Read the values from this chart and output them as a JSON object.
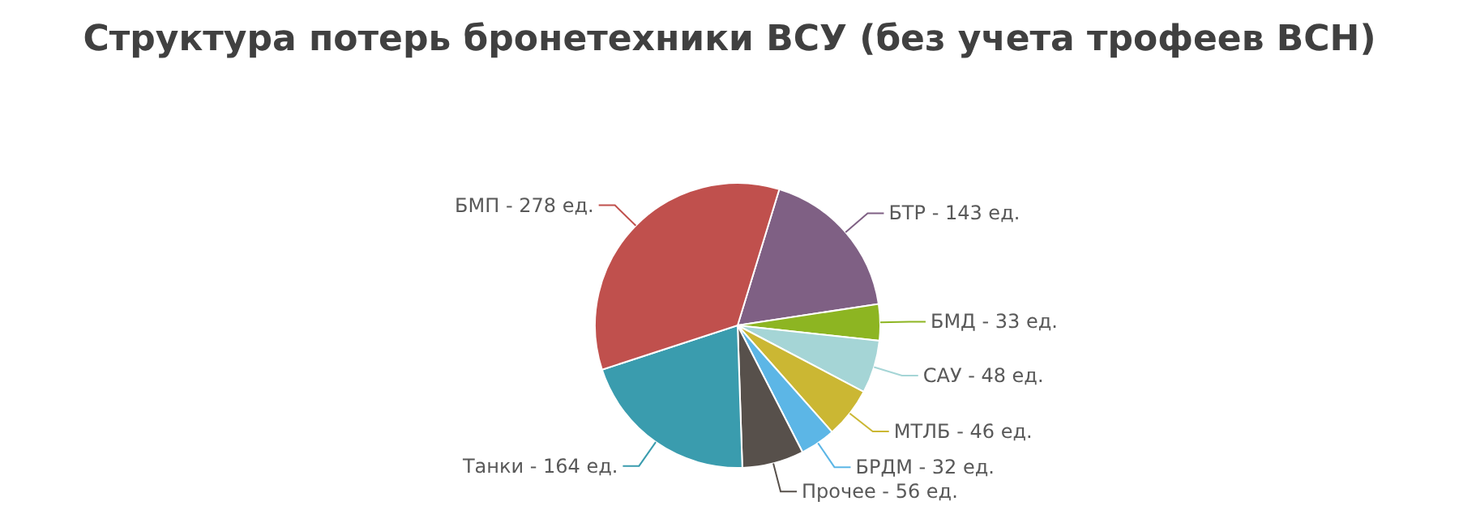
{
  "chart_data": {
    "type": "pie",
    "title": "Структура потерь бронетехники ВСУ (без учета трофеев ВСН)",
    "categories": [
      "БТР",
      "БМД",
      "САУ",
      "МТЛБ",
      "БРДМ",
      "Прочее",
      "Танки",
      "БМП"
    ],
    "values": [
      143,
      33,
      48,
      46,
      32,
      56,
      164,
      278
    ],
    "value_labels": [
      "143 ед.",
      "33 ед.",
      "48 ед.",
      "46 ед.",
      "32 ед.",
      "56 ед.",
      "164 ед.",
      "278 ед."
    ],
    "colors": [
      "#7f6084",
      "#8db522",
      "#a5d5d6",
      "#cbb733",
      "#5cb6e6",
      "#57504b",
      "#3a9cae",
      "#c0504d"
    ]
  }
}
